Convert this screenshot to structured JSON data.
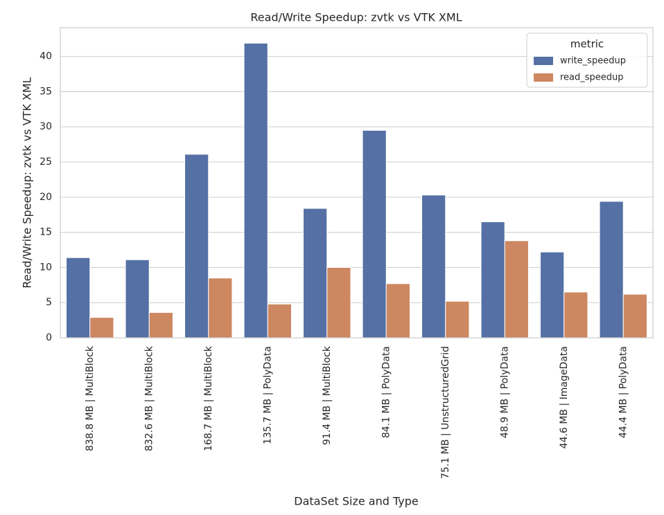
{
  "chart_data": {
    "type": "bar",
    "title": "Read/Write Speedup: zvtk vs VTK XML",
    "x_label": "DataSet Size and Type",
    "y_label": "Read/Write Speedup: zvtk vs VTK XML",
    "categories": [
      "838.8 MB | MultiBlock",
      "832.6 MB | MultiBlock",
      "168.7 MB | MultiBlock",
      "135.7 MB | PolyData",
      "91.4 MB | MultiBlock",
      "84.1 MB | PolyData",
      "75.1 MB | UnstructuredGrid",
      "48.9 MB | PolyData",
      "44.6 MB | ImageData",
      "44.4 MB | PolyData"
    ],
    "series": [
      {
        "name": "write_speedup",
        "color": "#5470a4",
        "values": [
          11.4,
          11.1,
          26.1,
          41.9,
          18.4,
          29.5,
          20.3,
          16.5,
          12.2,
          19.4
        ]
      },
      {
        "name": "read_speedup",
        "color": "#cd8761",
        "values": [
          2.9,
          3.6,
          8.5,
          4.8,
          10.0,
          7.7,
          5.2,
          13.8,
          6.5,
          6.2
        ]
      }
    ],
    "ylim": [
      0,
      44.1
    ],
    "yticks": [
      0,
      5,
      10,
      15,
      20,
      25,
      30,
      35,
      40
    ],
    "grid": true,
    "legend_title": "metric",
    "legend_position": "upper-right"
  }
}
